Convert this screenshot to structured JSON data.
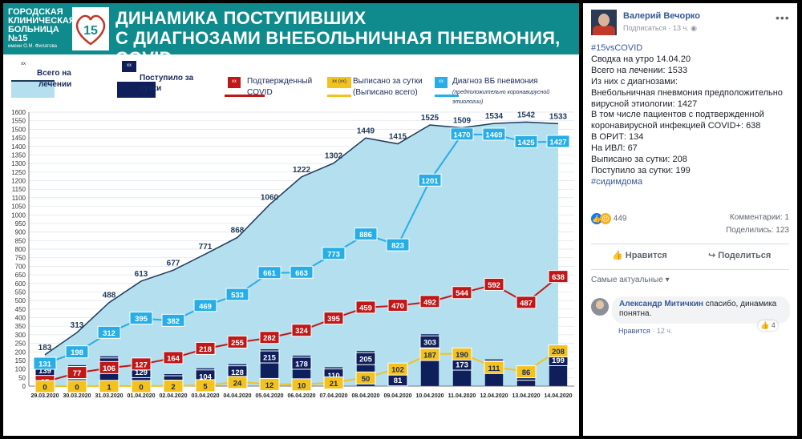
{
  "header": {
    "logo_lines": [
      "ГОРОДСКАЯ",
      "КЛИНИЧЕСКАЯ",
      "БОЛЬНИЦА №15"
    ],
    "logo_sub": "имени О.М. Филатова",
    "logo_mark": "15",
    "title_line1": "ДИНАМИКА ПОСТУПИВШИХ",
    "title_line2": "С ДИАГНОЗАМИ ВНЕБОЛЬНИЧНАЯ ПНЕВМОНИЯ, COVID"
  },
  "legend": {
    "total": {
      "marker": "xx",
      "line1": "Всего на",
      "line2": "лечении"
    },
    "admitted": {
      "marker": "xx",
      "line1": "Поступило за",
      "line2": "сутки"
    },
    "confirmed": {
      "marker": "xx",
      "line1": "Подтвержденный",
      "line2": "COVID"
    },
    "discharged": {
      "marker": "xx (xx)",
      "line1": "Выписано за сутки",
      "line2": "(Выписано всего)"
    },
    "pneumonia": {
      "marker": "xx",
      "line1": "Диагноз ВБ пневмония",
      "line2": "(предположительно коронавирусной этиологии)"
    }
  },
  "colors": {
    "header": "#0f8b8d",
    "area": "#b3dfee",
    "area_line": "#1f3a5a",
    "bar": "#0e1f5c",
    "confirmed": "#c01818",
    "discharged": "#f4c21c",
    "pneumonia": "#27aee6"
  },
  "chart_data": {
    "type": "combo",
    "title": "ДИНАМИКА ПОСТУПИВШИХ С ДИАГНОЗАМИ ВНЕБОЛЬНИЧНАЯ ПНЕВМОНИЯ, COVID",
    "categories": [
      "29.03.2020",
      "30.03.2020",
      "31.03.2020",
      "01.04.2020",
      "02.04.2020",
      "03.04.2020",
      "04.04.2020",
      "05.04.2020",
      "06.04.2020",
      "07.04.2020",
      "08.04.2020",
      "09.04.2020",
      "10.04.2020",
      "11.04.2020",
      "12.04.2020",
      "13.04.2020",
      "14.04.2020"
    ],
    "yticks": [
      0,
      50,
      100,
      150,
      200,
      250,
      300,
      350,
      400,
      450,
      500,
      550,
      600,
      650,
      700,
      750,
      800,
      850,
      900,
      950,
      1000,
      1050,
      1100,
      1150,
      1200,
      1250,
      1300,
      1350,
      1400,
      1450,
      1500,
      1550,
      1600
    ],
    "ytick_labels": [
      "0",
      "50",
      "100",
      "150",
      "200",
      "250",
      "300",
      "350",
      "400",
      "450",
      "500",
      "550",
      "600",
      "650",
      "700",
      "750",
      "800",
      "850",
      "900",
      "950",
      "1000",
      "1050",
      "1100",
      "1150",
      "1200",
      "1250",
      "1300",
      "1350",
      "1400",
      "1450",
      "1500",
      "1550",
      "1600"
    ],
    "ylim": [
      0,
      1600
    ],
    "series": [
      {
        "name": "Всего на лечении",
        "kind": "area",
        "values": [
          183,
          313,
          488,
          613,
          677,
          771,
          868,
          1060,
          1222,
          1302,
          1449,
          1415,
          1525,
          1509,
          1534,
          1542,
          1533
        ]
      },
      {
        "name": "Поступило за сутки",
        "kind": "bar",
        "values": [
          139,
          122,
          174,
          129,
          70,
          104,
          128,
          215,
          178,
          110,
          205,
          81,
          303,
          173,
          156,
          114,
          199
        ]
      },
      {
        "name": "Подтвержденный COVID",
        "kind": "line",
        "values": [
          25,
          77,
          106,
          127,
          164,
          218,
          255,
          282,
          324,
          395,
          459,
          470,
          492,
          544,
          592,
          487,
          638
        ]
      },
      {
        "name": "Выписано за сутки (Выписано всего)",
        "kind": "line",
        "values": [
          0,
          0,
          1,
          0,
          2,
          5,
          24,
          12,
          10,
          21,
          50,
          102,
          187,
          190,
          111,
          86,
          208
        ]
      },
      {
        "name": "Диагноз ВБ пневмония",
        "kind": "line",
        "values": [
          131,
          198,
          312,
          395,
          382,
          469,
          533,
          661,
          663,
          773,
          886,
          823,
          1201,
          1470,
          1469,
          1425,
          1427
        ]
      }
    ]
  },
  "post": {
    "author": "Валерий Вечорко",
    "subscribe": "Подписаться",
    "time": "13 ч.",
    "privacy_icon": "globe-icon",
    "lines": [
      "#15vsCOVID",
      "Сводка на утро 14.04.20",
      "Всего на лечении: 1533",
      "Из них с диагнозами:",
      "Внебольничная пневмония предположительно",
      "вирусной этиологии: 1427",
      "В том числе пациентов с подтвержденной",
      "коронавирусной инфекцией COVID+: 638",
      "В ОРИТ: 134",
      "На ИВЛ: 67",
      "Выписано за сутки: 208",
      "Поступило за сутки: 199",
      "#сидимдома"
    ],
    "reactions_count": "449",
    "comments": "Комментарии: 1",
    "shares": "Поделились: 123",
    "like_label": "Нравится",
    "share_label": "Поделиться",
    "sort_label": "Самые актуальные",
    "comment": {
      "author": "Александр Митичкин",
      "text": "спасибо, динамика понятна.",
      "reaction_count": "4",
      "like_label": "Нравится",
      "time": "12 ч."
    }
  }
}
